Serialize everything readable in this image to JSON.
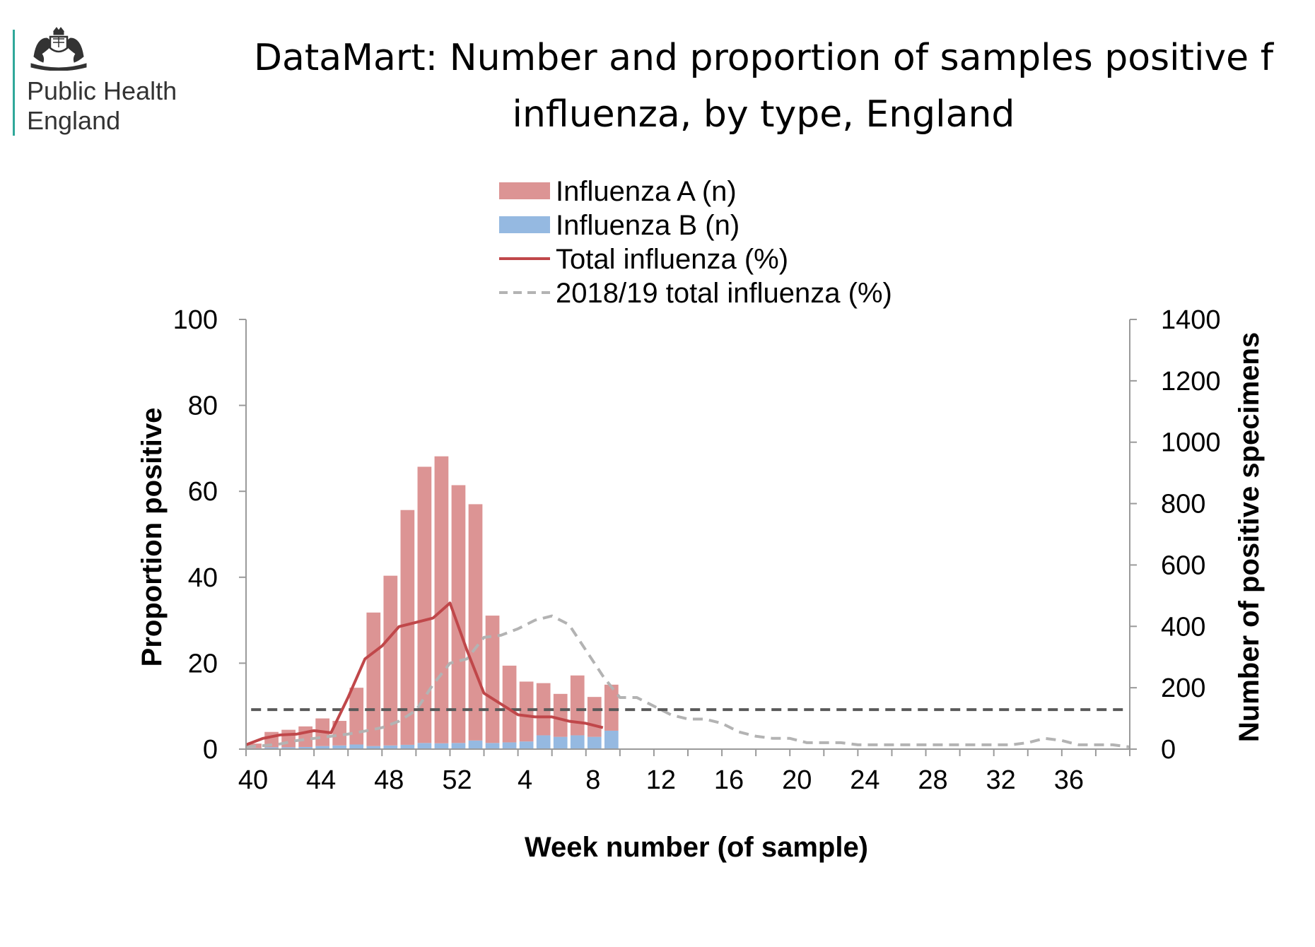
{
  "header": {
    "org_line1": "Public Health",
    "org_line2": "England",
    "title_line1": "DataMart: Number and proportion of samples positive f",
    "title_line2": "influenza, by type, England"
  },
  "chart_data": {
    "type": "bar",
    "stacked": true,
    "xlabel": "Week number (of sample)",
    "ylabel_left": "Proportion positive",
    "ylabel_right": "Number of positive specimens",
    "ylim_left": [
      0,
      100
    ],
    "ylim_right": [
      0,
      1400
    ],
    "yticks_left": [
      0,
      20,
      40,
      60,
      80,
      100
    ],
    "yticks_right": [
      0,
      200,
      400,
      600,
      800,
      1000,
      1200,
      1400
    ],
    "weeks": [
      40,
      41,
      42,
      43,
      44,
      45,
      46,
      47,
      48,
      49,
      50,
      51,
      52,
      1,
      2,
      3,
      4,
      5,
      6,
      7,
      8,
      9,
      10,
      11,
      12,
      13,
      14,
      15,
      16,
      17,
      18,
      19,
      20,
      21,
      22,
      23,
      24,
      25,
      26,
      27,
      28,
      29,
      30,
      31,
      32,
      33,
      34,
      35,
      36,
      37,
      38,
      39,
      40
    ],
    "x_tick_labels": [
      "40",
      "44",
      "48",
      "52",
      "4",
      "8",
      "12",
      "16",
      "20",
      "24",
      "28",
      "32",
      "36"
    ],
    "x_tick_label_weeks": [
      40,
      44,
      48,
      52,
      4,
      8,
      12,
      16,
      20,
      24,
      28,
      32,
      36
    ],
    "legend": {
      "position": "top",
      "entries": [
        "Influenza A (n)",
        "Influenza B (n)",
        "Total influenza (%)",
        "2018/19 total influenza (%)"
      ]
    },
    "series": [
      {
        "name": "Influenza A (n)",
        "kind": "bar",
        "axis": "right",
        "color": "#dc9494",
        "values": [
          15,
          50,
          57,
          67,
          90,
          80,
          185,
          435,
          553,
          765,
          900,
          935,
          840,
          770,
          415,
          250,
          195,
          170,
          140,
          195,
          130,
          150
        ]
      },
      {
        "name": "Influenza B (n)",
        "kind": "bar",
        "axis": "right",
        "color": "#95b9e1",
        "values": [
          3,
          6,
          6,
          7,
          10,
          12,
          15,
          10,
          12,
          14,
          20,
          19,
          20,
          28,
          20,
          22,
          25,
          45,
          40,
          45,
          40,
          60
        ]
      },
      {
        "name": "Total influenza (%)",
        "kind": "line",
        "axis": "left",
        "color": "#c0474a",
        "dash": "solid",
        "values": [
          1,
          2.5,
          3.3,
          3.5,
          4.3,
          3.8,
          12,
          21,
          24,
          28.5,
          29.5,
          30.5,
          34,
          23,
          13,
          10.5,
          8,
          7.5,
          7.5,
          6.5,
          6,
          5
        ]
      },
      {
        "name": "2018/19 total influenza (%)",
        "kind": "line",
        "axis": "left",
        "color": "#b3b3b3",
        "dash": "dashed",
        "values": [
          0.5,
          0.8,
          1.2,
          2,
          2.5,
          3,
          3.5,
          4.2,
          5,
          6.5,
          9,
          15,
          20,
          21,
          26,
          26.5,
          28,
          30,
          31,
          29,
          23,
          17,
          12,
          12,
          10,
          8,
          7,
          7,
          6,
          4,
          3,
          2.5,
          2.5,
          1.5,
          1.5,
          1.5,
          1,
          1,
          1,
          1,
          1,
          1,
          1,
          1,
          1,
          1,
          1.5,
          2.5,
          2,
          1,
          1,
          1,
          0.5
        ]
      }
    ],
    "threshold": {
      "kind": "line",
      "axis": "left",
      "color": "#595959",
      "dash": "dashed",
      "value": 9.2
    },
    "grid": false
  }
}
